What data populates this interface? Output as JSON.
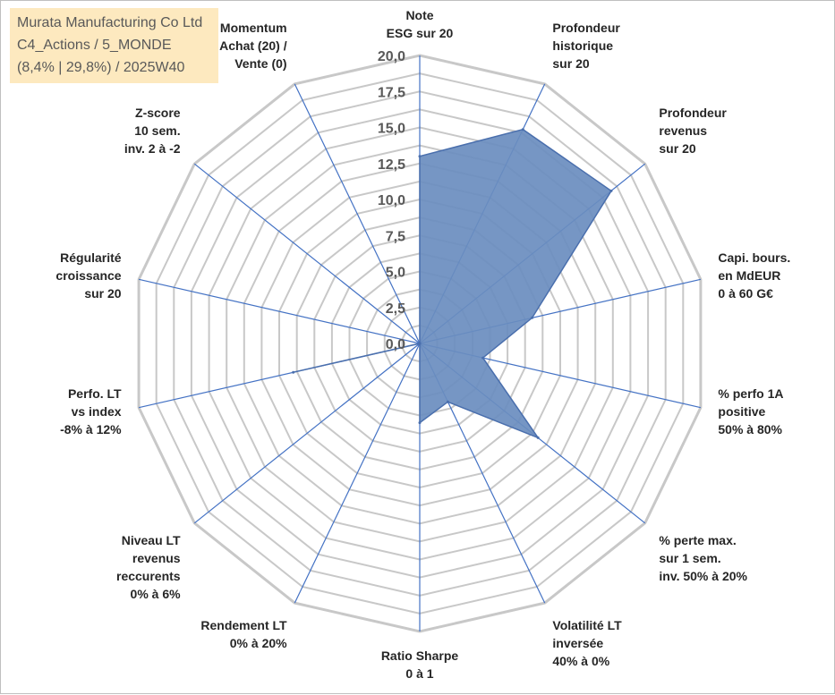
{
  "chart_data": {
    "type": "radar",
    "title_lines": [
      "Murata Manufacturing Co Ltd",
      "C4_Actions / 5_MONDE",
      "(8,4% | 29,8%) / 2025W40"
    ],
    "rlim": [
      0,
      20
    ],
    "ticks": [
      "0,0",
      "2,5",
      "5,0",
      "7,5",
      "10,0",
      "12,5",
      "15,0",
      "17,5",
      "20,0"
    ],
    "categories": [
      [
        "Note",
        "ESG sur 20"
      ],
      [
        "Profondeur",
        "historique",
        "sur 20"
      ],
      [
        "Profondeur",
        "revenus",
        "sur 20"
      ],
      [
        "Capi. bours.",
        "en MdEUR",
        "0 à 60 G€"
      ],
      [
        "% perfo 1A",
        "positive",
        "50% à 80%"
      ],
      [
        "% perte max.",
        "sur 1 sem.",
        "inv. 50% à 20%"
      ],
      [
        "Volatilité LT",
        "inversée",
        "40% à 0%"
      ],
      [
        "Ratio Sharpe",
        "0 à 1"
      ],
      [
        "Rendement LT",
        "0% à 20%"
      ],
      [
        "Niveau LT",
        "revenus",
        "reccurents",
        "0% à 6%"
      ],
      [
        "Perfo. LT",
        "vs index",
        "-8% à 12%"
      ],
      [
        "Régularité",
        "croissance",
        "sur 20"
      ],
      [
        "Z-score",
        "10 sem.",
        "inv. 2 à -2"
      ],
      [
        "Momentum",
        "Achat (20) /",
        "Vente (0)"
      ]
    ],
    "series": [
      {
        "name": "Murata Manufacturing Co Ltd",
        "values": [
          13.0,
          16.5,
          17.0,
          8.0,
          4.5,
          10.5,
          4.5,
          5.5,
          0.0,
          0.0,
          9.0,
          0.0,
          0.0,
          0.0
        ]
      }
    ],
    "colors": {
      "fill": "#6a8dbf",
      "stroke": "#4a6fad",
      "spoke": "#4472c4",
      "grid": "#c8c8c8",
      "title_bg": "#fde9bf"
    }
  }
}
